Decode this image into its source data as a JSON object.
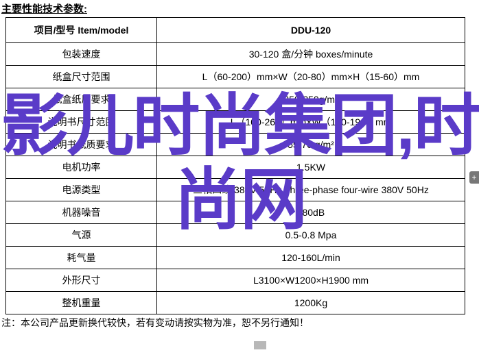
{
  "heading": "主要性能技术参数:",
  "table": {
    "header": {
      "left": "项目/型号 Item/model",
      "right": "DDU-120"
    },
    "rows": [
      {
        "label": "包装速度",
        "value": "30-120 盒/分钟 boxes/minute"
      },
      {
        "label": "纸盒尺寸范围",
        "value": "L（60-200）mm×W（20-80）mm×H（15-60）mm"
      },
      {
        "label": "纸盒纸质要求",
        "value": "250-350g/m³"
      },
      {
        "label": "说明书尺寸范围",
        "value": "L（100-260）mm×W（100-190）mm"
      },
      {
        "label": "说明书纸质要求",
        "value": "55-70 g/m²"
      },
      {
        "label": "电机功率",
        "value": "1.5KW"
      },
      {
        "label": "电源类型",
        "value": "三相四线 380V 50Hz Three-phase four-wire 380V 50Hz"
      },
      {
        "label": "机器噪音",
        "value": "≤80dB"
      },
      {
        "label": "气源",
        "value": "0.5-0.8 Mpa"
      },
      {
        "label": "耗气量",
        "value": "120-160L/min"
      },
      {
        "label": "外形尺寸",
        "value": "L3100×W1200×H1900 mm"
      },
      {
        "label": "整机重量",
        "value": "1200Kg"
      }
    ]
  },
  "footnote": "注：本公司产品更新换代较快，若有变动请按实物为准，恕不另行通知！",
  "watermark": "影儿时尚集团,时尚网",
  "sidebtn": "+",
  "colors": {
    "watermark": "#5a3bc8",
    "border": "#000000",
    "text": "#000000",
    "background": "#ffffff"
  },
  "fonts": {
    "heading_size": 15,
    "cell_size": 14,
    "watermark_size": 98
  }
}
